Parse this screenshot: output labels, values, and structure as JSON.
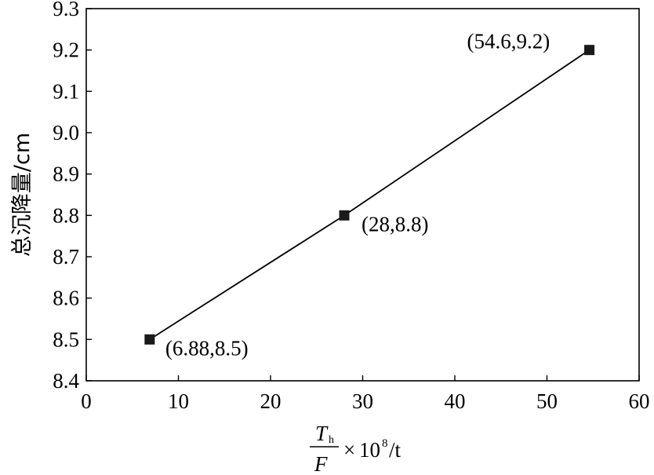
{
  "chart_data": {
    "type": "scatter",
    "title": "",
    "ylabel": "总沉降量/cm",
    "xlabel": {
      "numerator": "T",
      "numerator_sub": "h",
      "denominator": "F",
      "times": "×",
      "base": "10",
      "exponent": "8",
      "unit": "/t"
    },
    "xlim": [
      0,
      60
    ],
    "ylim": [
      8.4,
      9.3
    ],
    "x_ticks": [
      "0",
      "10",
      "20",
      "30",
      "40",
      "50",
      "60"
    ],
    "y_ticks": [
      "8.4",
      "8.5",
      "8.6",
      "8.7",
      "8.8",
      "8.9",
      "9.0",
      "9.1",
      "9.2",
      "9.3"
    ],
    "grid": false,
    "legend": "none",
    "series": [
      {
        "x": [
          6.88,
          28,
          54.6
        ],
        "y": [
          8.5,
          8.8,
          9.2
        ],
        "marker": "square",
        "line": true,
        "labels": [
          "(6.88,8.5)",
          "(28,8.8)",
          "(54.6,9.2)"
        ]
      }
    ],
    "colors": {
      "line": "#000000",
      "marker": "#1a1a1a"
    }
  }
}
